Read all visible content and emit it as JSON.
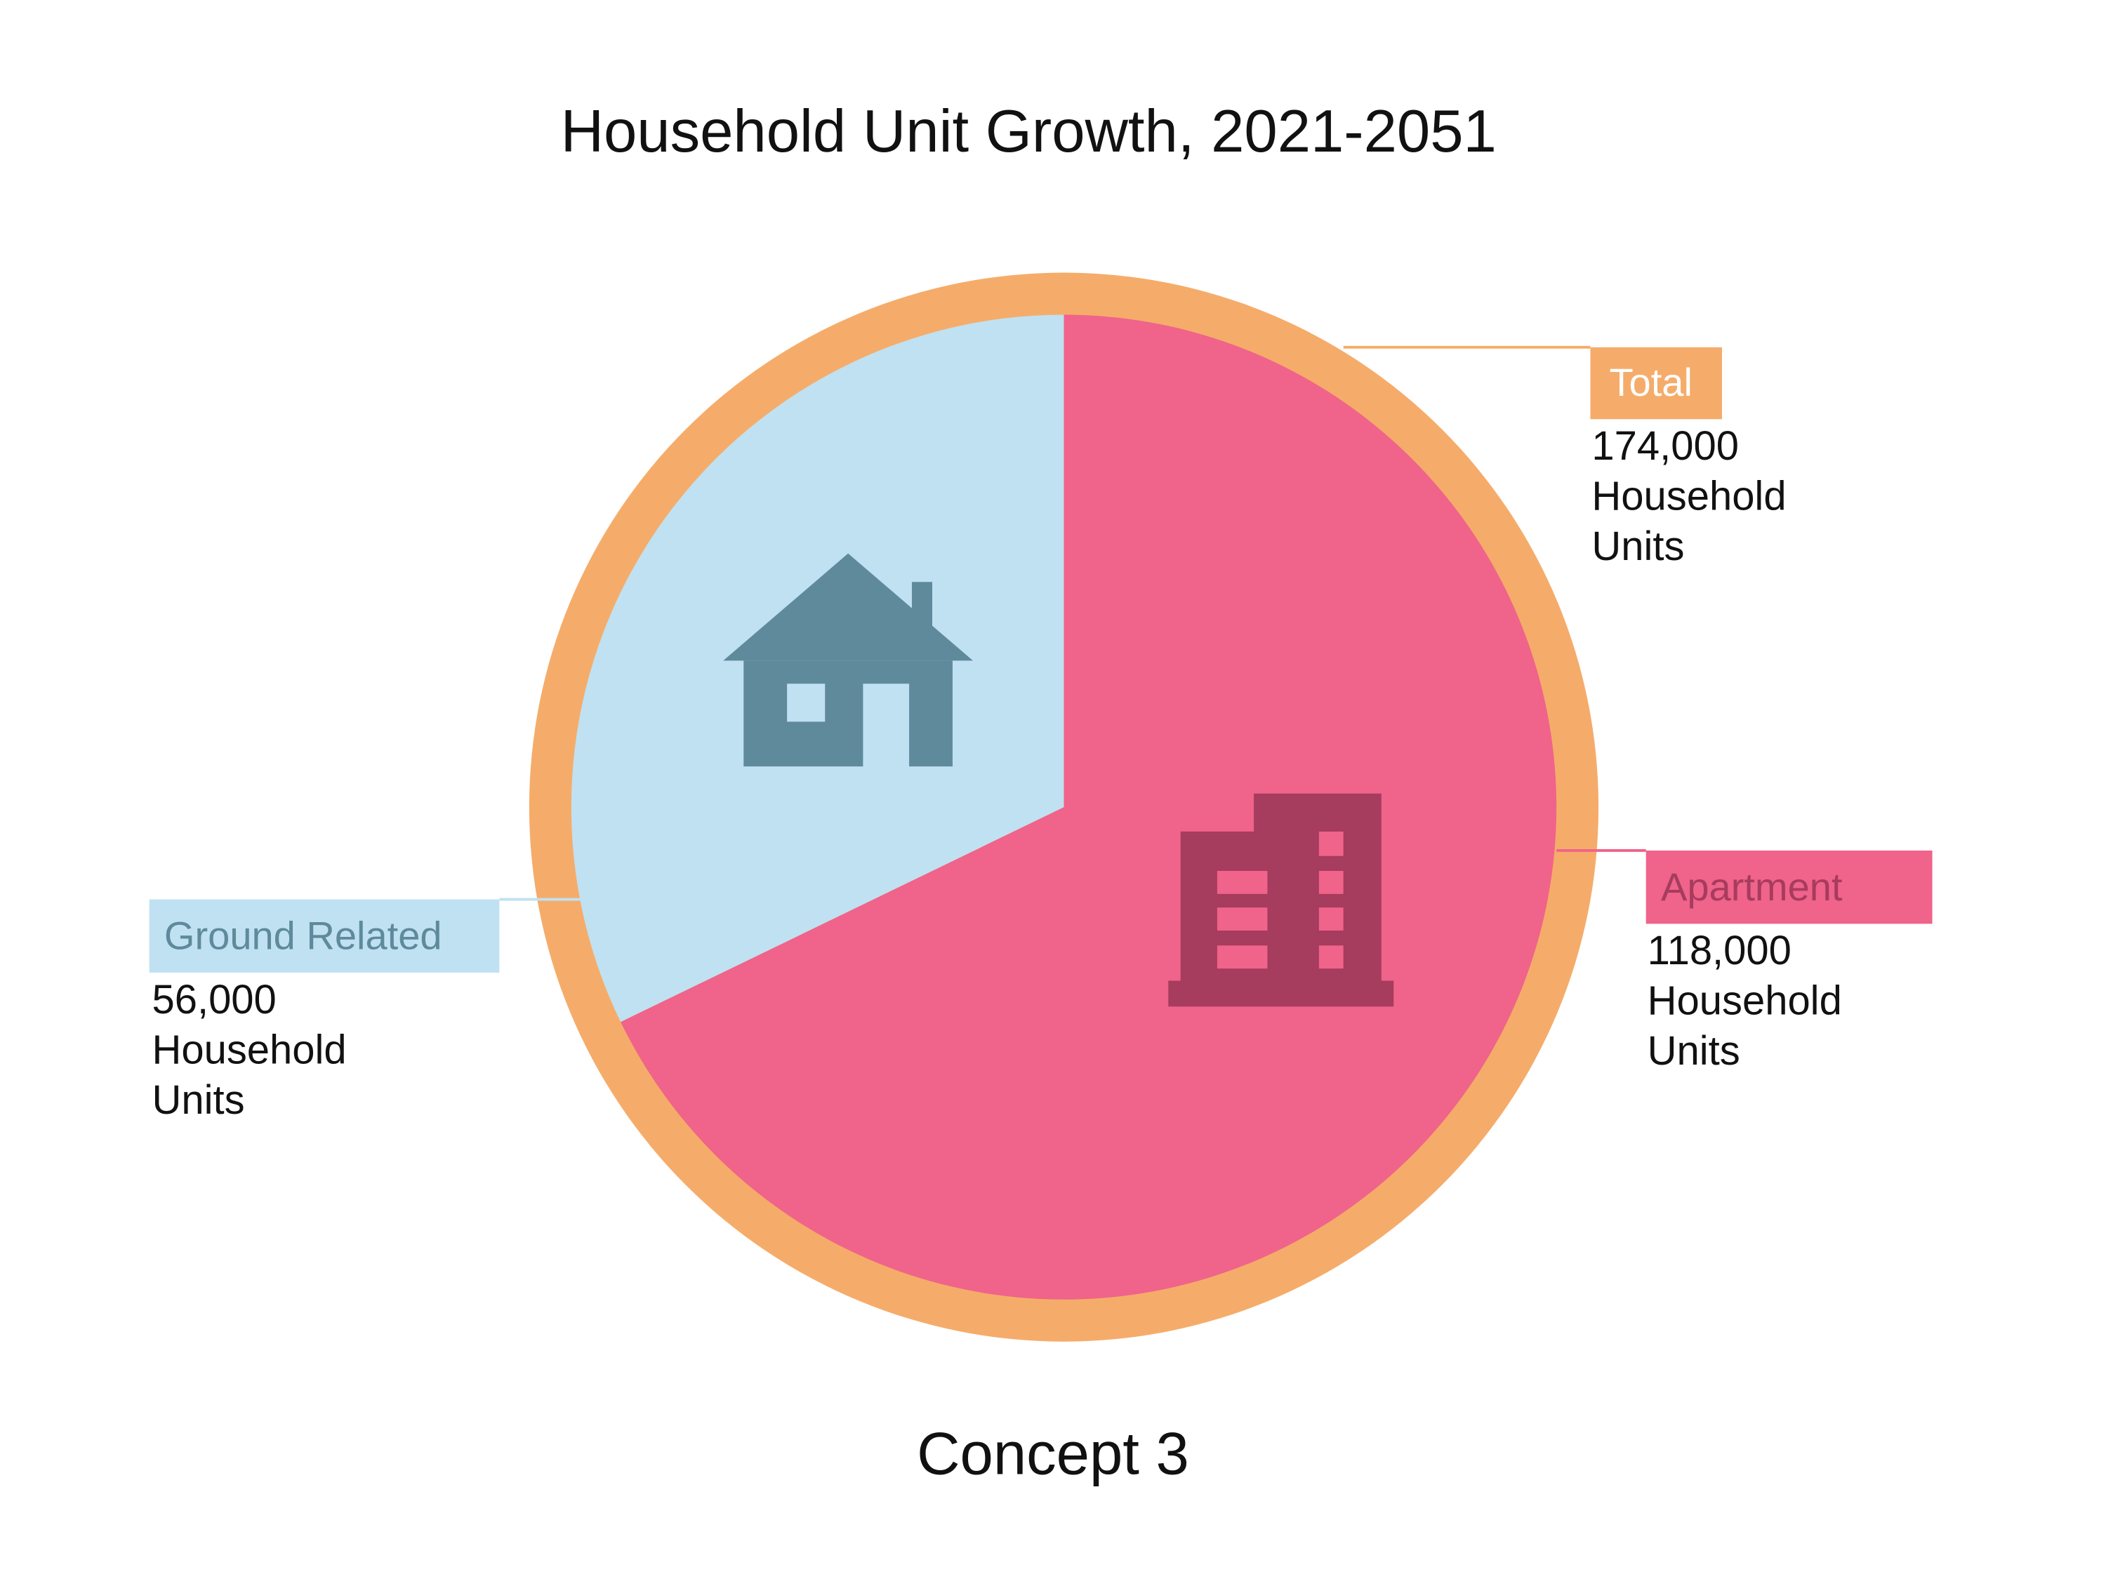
{
  "chart_data": {
    "type": "pie",
    "title": "Household Unit Growth, 2021-2051",
    "subtitle": "Concept 3",
    "categories": [
      "Ground Related",
      "Apartment"
    ],
    "values": [
      56000,
      118000
    ],
    "value_labels": [
      "56,000",
      "118,000"
    ],
    "colors": [
      "#c0e1f1",
      "#f0638a"
    ],
    "label_text_colors": [
      "#5e8a9c",
      "#a63c5e"
    ],
    "total": {
      "label": "Total",
      "value": 174000,
      "value_label": "174,000",
      "color": "#f5ac6a"
    },
    "unit_label_lines": [
      "Household",
      "Units"
    ]
  }
}
